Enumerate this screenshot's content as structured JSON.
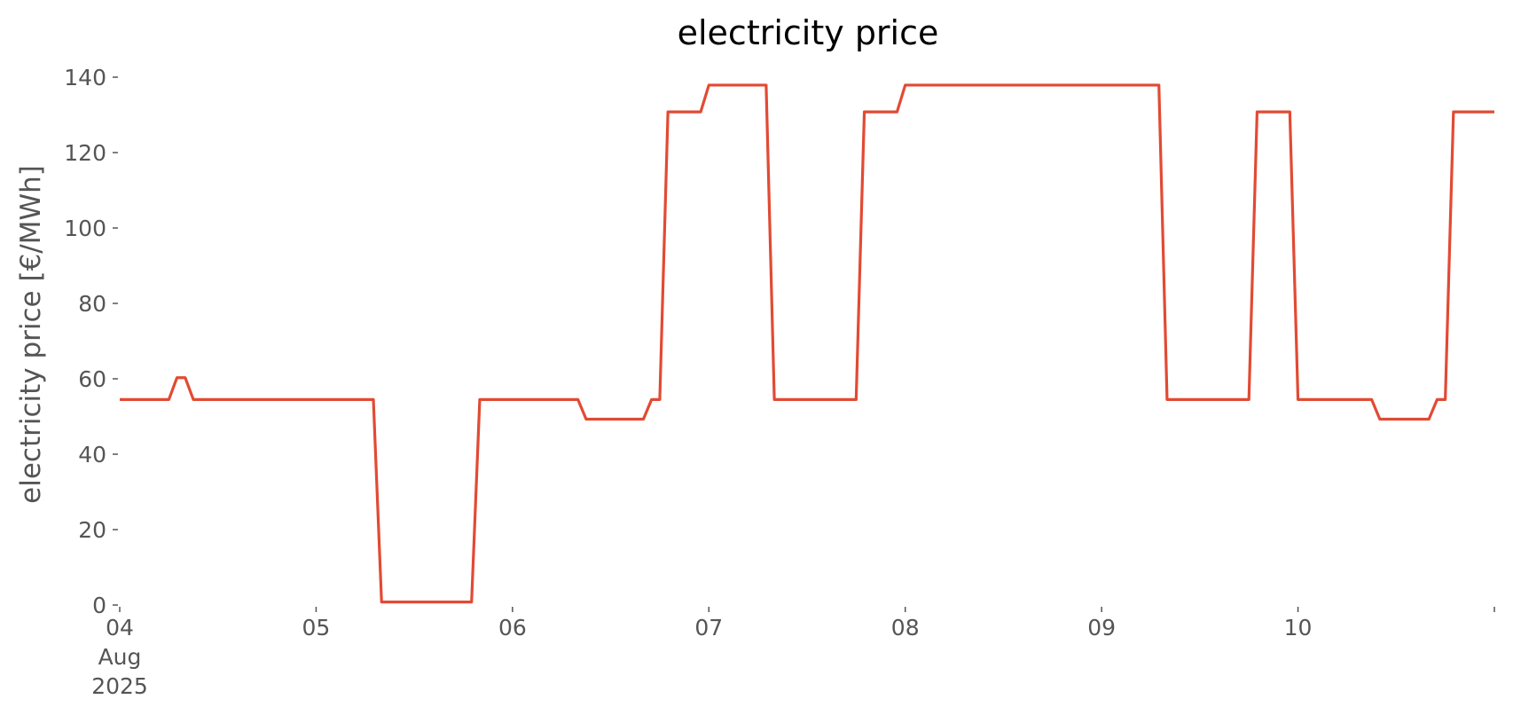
{
  "chart_data": {
    "type": "line",
    "title": "electricity price",
    "xlabel": "",
    "ylabel": "electricity price [€/MWh]",
    "grid": false,
    "legend": "none",
    "x_unit": "datetime",
    "xlim": [
      "2025-08-04 00:00",
      "2025-08-11 00:00"
    ],
    "ylim": [
      0,
      140
    ],
    "y_ticks": [
      0,
      20,
      40,
      60,
      80,
      100,
      120,
      140
    ],
    "x_ticks": [
      {
        "x": "2025-08-04 00:00",
        "label": "04",
        "sublabel": "Aug",
        "sublabel2": "2025"
      },
      {
        "x": "2025-08-05 00:00",
        "label": "05"
      },
      {
        "x": "2025-08-06 00:00",
        "label": "06"
      },
      {
        "x": "2025-08-07 00:00",
        "label": "07"
      },
      {
        "x": "2025-08-08 00:00",
        "label": "08"
      },
      {
        "x": "2025-08-09 00:00",
        "label": "09"
      },
      {
        "x": "2025-08-10 00:00",
        "label": "10"
      },
      {
        "x": "2025-08-11 00:00",
        "label": ""
      }
    ],
    "colors": {
      "series": "#e24a33",
      "axis_text": "#555555",
      "title": "#000000"
    },
    "series": [
      {
        "color": "#e24a33",
        "points": [
          [
            "2025-08-04 00:00",
            54.5
          ],
          [
            "2025-08-04 06:00",
            54.5
          ],
          [
            "2025-08-04 07:00",
            60.3
          ],
          [
            "2025-08-04 08:00",
            60.3
          ],
          [
            "2025-08-04 09:00",
            54.5
          ],
          [
            "2025-08-05 07:00",
            54.5
          ],
          [
            "2025-08-05 08:00",
            0.8
          ],
          [
            "2025-08-05 19:00",
            0.8
          ],
          [
            "2025-08-05 20:00",
            54.5
          ],
          [
            "2025-08-06 08:00",
            54.5
          ],
          [
            "2025-08-06 09:00",
            49.3
          ],
          [
            "2025-08-06 16:00",
            49.3
          ],
          [
            "2025-08-06 17:00",
            54.5
          ],
          [
            "2025-08-06 18:00",
            54.5
          ],
          [
            "2025-08-06 19:00",
            130.8
          ],
          [
            "2025-08-06 23:00",
            130.8
          ],
          [
            "2025-08-07 00:00",
            137.9
          ],
          [
            "2025-08-07 07:00",
            137.9
          ],
          [
            "2025-08-07 08:00",
            54.5
          ],
          [
            "2025-08-07 18:00",
            54.5
          ],
          [
            "2025-08-07 19:00",
            130.8
          ],
          [
            "2025-08-07 23:00",
            130.8
          ],
          [
            "2025-08-08 00:00",
            137.9
          ],
          [
            "2025-08-09 07:00",
            137.9
          ],
          [
            "2025-08-09 08:00",
            54.5
          ],
          [
            "2025-08-09 18:00",
            54.5
          ],
          [
            "2025-08-09 19:00",
            130.8
          ],
          [
            "2025-08-09 23:00",
            130.8
          ],
          [
            "2025-08-10 00:00",
            54.5
          ],
          [
            "2025-08-10 09:00",
            54.5
          ],
          [
            "2025-08-10 10:00",
            49.3
          ],
          [
            "2025-08-10 16:00",
            49.3
          ],
          [
            "2025-08-10 17:00",
            54.5
          ],
          [
            "2025-08-10 18:00",
            54.5
          ],
          [
            "2025-08-10 19:00",
            130.8
          ],
          [
            "2025-08-11 00:00",
            130.8
          ]
        ]
      }
    ]
  }
}
